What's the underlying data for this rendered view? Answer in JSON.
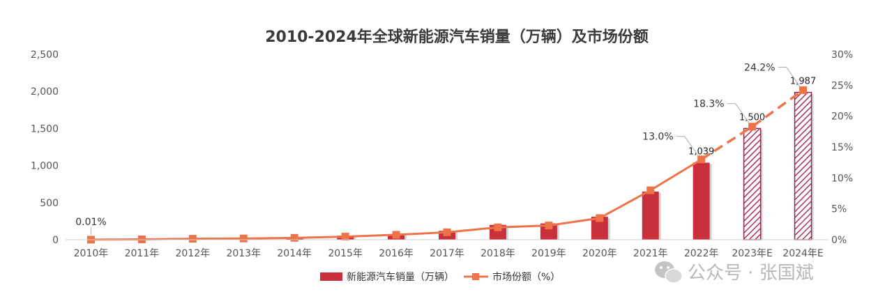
{
  "chart_data": {
    "type": "bar",
    "title": "2010-2024年全球新能源汽车销量（万辆）及市场份额",
    "categories": [
      "2010年",
      "2011年",
      "2012年",
      "2013年",
      "2014年",
      "2015年",
      "2016年",
      "2017年",
      "2018年",
      "2019年",
      "2020年",
      "2021年",
      "2022年",
      "2023年E",
      "2024年E"
    ],
    "series": [
      {
        "name": "新能源汽车销量（万辆）",
        "kind": "bar",
        "axis": "left",
        "values": [
          1,
          5,
          12,
          20,
          32,
          55,
          75,
          120,
          200,
          220,
          310,
          650,
          1039,
          1500,
          1987
        ],
        "estimated_from_index": 13,
        "color": "#c9303b"
      },
      {
        "name": "市场份额（%）",
        "kind": "line",
        "axis": "right",
        "values": [
          0.01,
          0.05,
          0.15,
          0.2,
          0.3,
          0.5,
          0.8,
          1.2,
          2.0,
          2.3,
          3.5,
          8.0,
          13.0,
          18.3,
          24.2
        ],
        "estimated_from_index": 13,
        "color": "#ee7349"
      }
    ],
    "bar_labels": [
      {
        "index": 12,
        "text": "1,039"
      },
      {
        "index": 13,
        "text": "1,500"
      },
      {
        "index": 14,
        "text": "1,987"
      }
    ],
    "share_labels": [
      {
        "index": 0,
        "text": "0.01%"
      },
      {
        "index": 12,
        "text": "13.0%"
      },
      {
        "index": 13,
        "text": "18.3%"
      },
      {
        "index": 14,
        "text": "24.2%"
      }
    ],
    "y_left": {
      "ticks": [
        "0",
        "500",
        "1,000",
        "1,500",
        "2,000",
        "2,500"
      ],
      "ylim": [
        0,
        2500
      ]
    },
    "y_right": {
      "ticks": [
        "0%",
        "5%",
        "10%",
        "15%",
        "20%",
        "25%",
        "30%"
      ],
      "ylim": [
        0,
        30
      ]
    },
    "grid": false,
    "legend_position": "bottom-center"
  },
  "watermark": {
    "text": "公众号 · 张国斌",
    "icon": "wechat-icon"
  }
}
